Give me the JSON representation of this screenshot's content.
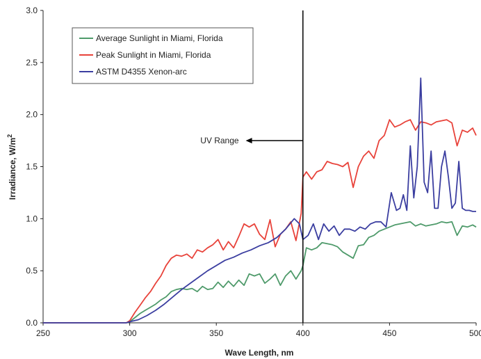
{
  "chart_data": {
    "type": "line",
    "title": "",
    "xlabel": "Wave Length, nm",
    "ylabel_main": "Irradiance, W/m",
    "ylabel_sup": "2",
    "xlim": [
      250,
      500
    ],
    "ylim": [
      0,
      3.0
    ],
    "xticks": [
      250,
      300,
      350,
      400,
      450,
      500
    ],
    "yticks": [
      0.0,
      0.5,
      1.0,
      1.5,
      2.0,
      2.5,
      3.0
    ],
    "xtick_labels": [
      "250",
      "300",
      "350",
      "400",
      "450",
      "500"
    ],
    "ytick_labels": [
      "0.0",
      "0.5",
      "1.0",
      "1.5",
      "2.0",
      "2.5",
      "3.0"
    ],
    "grid": false,
    "legend_placement": "top-left",
    "series": [
      {
        "name": "Average Sunlight in Miami, Florida",
        "color": "#4e9a6a",
        "x": [
          250,
          260,
          270,
          280,
          290,
          298,
          300,
          303,
          306,
          309,
          312,
          315,
          318,
          321,
          324,
          327,
          330,
          333,
          336,
          339,
          342,
          345,
          348,
          351,
          354,
          357,
          360,
          363,
          366,
          369,
          372,
          375,
          378,
          381,
          384,
          387,
          390,
          393,
          396,
          399,
          400,
          402,
          405,
          408,
          411,
          414,
          417,
          420,
          423,
          426,
          429,
          432,
          435,
          438,
          441,
          444,
          447,
          450,
          453,
          456,
          459,
          462,
          465,
          468,
          471,
          474,
          477,
          480,
          483,
          486,
          489,
          492,
          495,
          498,
          500
        ],
        "y": [
          0,
          0,
          0,
          0,
          0,
          0,
          0.01,
          0.05,
          0.09,
          0.12,
          0.15,
          0.18,
          0.22,
          0.25,
          0.3,
          0.32,
          0.33,
          0.32,
          0.33,
          0.3,
          0.35,
          0.32,
          0.33,
          0.39,
          0.34,
          0.4,
          0.35,
          0.41,
          0.36,
          0.47,
          0.45,
          0.47,
          0.38,
          0.42,
          0.47,
          0.36,
          0.45,
          0.5,
          0.42,
          0.5,
          0.55,
          0.72,
          0.7,
          0.72,
          0.77,
          0.76,
          0.75,
          0.73,
          0.68,
          0.65,
          0.62,
          0.74,
          0.75,
          0.82,
          0.84,
          0.88,
          0.9,
          0.92,
          0.94,
          0.95,
          0.96,
          0.97,
          0.93,
          0.95,
          0.93,
          0.94,
          0.95,
          0.97,
          0.96,
          0.97,
          0.84,
          0.93,
          0.92,
          0.94,
          0.92
        ]
      },
      {
        "name": "Peak Sunlight in Miami, Florida",
        "color": "#e8423a",
        "x": [
          250,
          260,
          270,
          280,
          290,
          298,
          300,
          303,
          306,
          309,
          312,
          315,
          318,
          321,
          324,
          327,
          330,
          333,
          336,
          339,
          342,
          345,
          348,
          351,
          354,
          357,
          360,
          363,
          366,
          369,
          372,
          375,
          378,
          381,
          384,
          387,
          390,
          393,
          396,
          399,
          400,
          402,
          405,
          408,
          411,
          414,
          417,
          420,
          423,
          426,
          429,
          432,
          435,
          438,
          441,
          444,
          447,
          450,
          453,
          456,
          459,
          462,
          465,
          468,
          471,
          474,
          477,
          480,
          483,
          486,
          489,
          492,
          495,
          498,
          500
        ],
        "y": [
          0,
          0,
          0,
          0,
          0,
          0,
          0.02,
          0.1,
          0.17,
          0.24,
          0.3,
          0.38,
          0.45,
          0.55,
          0.62,
          0.65,
          0.64,
          0.66,
          0.62,
          0.7,
          0.68,
          0.72,
          0.75,
          0.8,
          0.7,
          0.78,
          0.72,
          0.83,
          0.95,
          0.92,
          0.95,
          0.85,
          0.8,
          0.99,
          0.73,
          0.85,
          0.9,
          0.97,
          0.79,
          1.05,
          1.4,
          1.45,
          1.38,
          1.45,
          1.47,
          1.55,
          1.53,
          1.52,
          1.5,
          1.54,
          1.3,
          1.5,
          1.6,
          1.65,
          1.58,
          1.75,
          1.8,
          1.95,
          1.88,
          1.9,
          1.93,
          1.95,
          1.85,
          1.93,
          1.92,
          1.9,
          1.93,
          1.94,
          1.95,
          1.92,
          1.7,
          1.85,
          1.83,
          1.87,
          1.8
        ]
      },
      {
        "name": "ASTM D4355 Xenon-arc",
        "color": "#3b3ea0",
        "x": [
          250,
          260,
          270,
          280,
          290,
          298,
          300,
          305,
          310,
          315,
          320,
          325,
          330,
          335,
          340,
          345,
          350,
          355,
          360,
          365,
          370,
          375,
          380,
          385,
          390,
          395,
          398,
          400,
          403,
          406,
          409,
          412,
          415,
          418,
          421,
          424,
          427,
          430,
          433,
          436,
          439,
          442,
          445,
          448,
          451,
          454,
          456,
          458,
          460,
          462,
          464,
          466,
          468,
          470,
          472,
          474,
          476,
          478,
          480,
          482,
          484,
          486,
          488,
          490,
          492,
          494,
          496,
          498,
          500
        ],
        "y": [
          0,
          0,
          0,
          0,
          0,
          0,
          0.01,
          0.03,
          0.07,
          0.12,
          0.18,
          0.25,
          0.32,
          0.38,
          0.44,
          0.5,
          0.55,
          0.6,
          0.63,
          0.67,
          0.7,
          0.74,
          0.77,
          0.82,
          0.9,
          1.0,
          0.95,
          0.8,
          0.84,
          0.95,
          0.8,
          0.95,
          0.88,
          0.93,
          0.84,
          0.9,
          0.9,
          0.88,
          0.92,
          0.9,
          0.95,
          0.97,
          0.97,
          0.92,
          1.25,
          1.08,
          1.1,
          1.23,
          1.08,
          1.7,
          1.2,
          1.5,
          2.35,
          1.35,
          1.25,
          1.65,
          1.1,
          1.1,
          1.5,
          1.65,
          1.4,
          1.1,
          1.15,
          1.55,
          1.1,
          1.08,
          1.08,
          1.07,
          1.07
        ]
      }
    ],
    "annotation": {
      "text": "UV Range",
      "arrow_from_x": 400,
      "arrow_to_x": 367,
      "y": 1.75,
      "vline_x": 400
    }
  }
}
